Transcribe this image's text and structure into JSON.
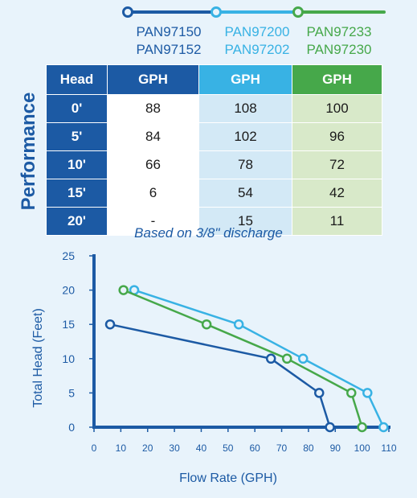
{
  "legend": [
    {
      "line1": "PAN97150",
      "line2": "PAN97152",
      "color": "#1c5aa4"
    },
    {
      "line1": "PAN97200",
      "line2": "PAN97202",
      "color": "#38b2e4"
    },
    {
      "line1": "PAN97233",
      "line2": "PAN97230",
      "color": "#46a84a"
    }
  ],
  "table": {
    "side_label": "Performance",
    "headers": [
      "Head",
      "GPH",
      "GPH",
      "GPH"
    ],
    "header_colors": [
      "#1c5aa4",
      "#1c5aa4",
      "#38b2e4",
      "#46a84a"
    ],
    "rows": [
      {
        "head": "0'",
        "a": "88",
        "b": "108",
        "c": "100"
      },
      {
        "head": "5'",
        "a": "84",
        "b": "102",
        "c": "96"
      },
      {
        "head": "10'",
        "a": "66",
        "b": "78",
        "c": "72"
      },
      {
        "head": "15'",
        "a": "6",
        "b": "54",
        "c": "42"
      },
      {
        "head": "20'",
        "a": "-",
        "b": "15",
        "c": "11"
      }
    ]
  },
  "note": "Based on 3/8\" discharge",
  "chart_data": {
    "type": "line",
    "xlabel": "Flow Rate (GPH)",
    "ylabel": "Total Head (Feet)",
    "xlim": [
      0,
      110
    ],
    "ylim": [
      0,
      25
    ],
    "xticks": [
      0,
      10,
      20,
      30,
      40,
      50,
      60,
      70,
      80,
      90,
      100,
      110
    ],
    "yticks": [
      0,
      5,
      10,
      15,
      20,
      25
    ],
    "grid": false,
    "series": [
      {
        "name": "PAN97150 PAN97152",
        "color": "#1c5aa4",
        "points": [
          [
            88,
            0
          ],
          [
            84,
            5
          ],
          [
            66,
            10
          ],
          [
            6,
            15
          ]
        ]
      },
      {
        "name": "PAN97200 PAN97202",
        "color": "#38b2e4",
        "points": [
          [
            108,
            0
          ],
          [
            102,
            5
          ],
          [
            78,
            10
          ],
          [
            54,
            15
          ],
          [
            15,
            20
          ]
        ]
      },
      {
        "name": "PAN97233 PAN97230",
        "color": "#46a84a",
        "points": [
          [
            100,
            0
          ],
          [
            96,
            5
          ],
          [
            72,
            10
          ],
          [
            42,
            15
          ],
          [
            11,
            20
          ]
        ]
      }
    ]
  }
}
